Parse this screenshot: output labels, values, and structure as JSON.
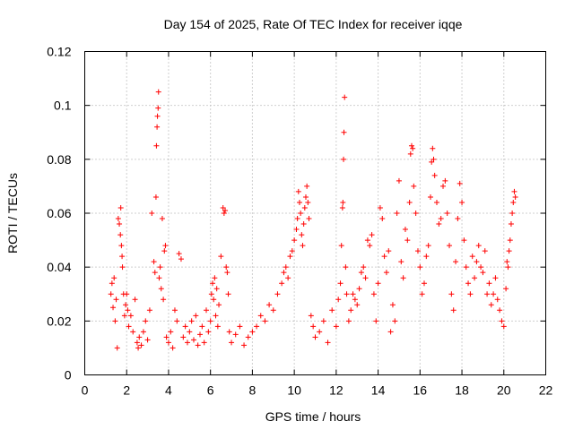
{
  "chart_data": {
    "type": "scatter",
    "title": "Day 154 of 2025, Rate Of TEC Index for receiver iqqe",
    "xlabel": "GPS time / hours",
    "ylabel": "ROTI / TECUs",
    "xlim": [
      0,
      22
    ],
    "ylim": [
      0,
      0.12
    ],
    "xticks": [
      0,
      2,
      4,
      6,
      8,
      10,
      12,
      14,
      16,
      18,
      20,
      22
    ],
    "yticks": [
      0,
      0.02,
      0.04,
      0.06,
      0.08,
      0.1,
      0.12
    ],
    "xtick_labels": [
      "0",
      "2",
      "4",
      "6",
      "8",
      "10",
      "12",
      "14",
      "16",
      "18",
      "20",
      "22"
    ],
    "ytick_labels": [
      "0",
      "0.02",
      "0.04",
      "0.06",
      "0.08",
      "0.1",
      "0.12"
    ],
    "grid": true,
    "marker": "+",
    "color": "#ff0000",
    "series": [
      {
        "name": "ROTI",
        "points": [
          [
            1.25,
            0.03
          ],
          [
            1.3,
            0.034
          ],
          [
            1.35,
            0.025
          ],
          [
            1.4,
            0.036
          ],
          [
            1.45,
            0.02
          ],
          [
            1.5,
            0.028
          ],
          [
            1.55,
            0.01
          ],
          [
            1.6,
            0.058
          ],
          [
            1.65,
            0.056
          ],
          [
            1.7,
            0.052
          ],
          [
            1.72,
            0.062
          ],
          [
            1.75,
            0.048
          ],
          [
            1.78,
            0.044
          ],
          [
            1.8,
            0.04
          ],
          [
            1.85,
            0.03
          ],
          [
            1.9,
            0.022
          ],
          [
            1.95,
            0.026
          ],
          [
            2.0,
            0.03
          ],
          [
            2.05,
            0.024
          ],
          [
            2.1,
            0.018
          ],
          [
            2.2,
            0.022
          ],
          [
            2.3,
            0.016
          ],
          [
            2.4,
            0.028
          ],
          [
            2.5,
            0.012
          ],
          [
            2.55,
            0.01
          ],
          [
            2.6,
            0.014
          ],
          [
            2.7,
            0.011
          ],
          [
            2.8,
            0.016
          ],
          [
            2.9,
            0.02
          ],
          [
            3.0,
            0.013
          ],
          [
            3.1,
            0.024
          ],
          [
            3.2,
            0.06
          ],
          [
            3.3,
            0.042
          ],
          [
            3.35,
            0.038
          ],
          [
            3.4,
            0.066
          ],
          [
            3.42,
            0.085
          ],
          [
            3.45,
            0.092
          ],
          [
            3.47,
            0.096
          ],
          [
            3.5,
            0.099
          ],
          [
            3.52,
            0.105
          ],
          [
            3.55,
            0.036
          ],
          [
            3.6,
            0.04
          ],
          [
            3.65,
            0.032
          ],
          [
            3.7,
            0.058
          ],
          [
            3.75,
            0.028
          ],
          [
            3.8,
            0.046
          ],
          [
            3.85,
            0.048
          ],
          [
            3.9,
            0.014
          ],
          [
            4.0,
            0.012
          ],
          [
            4.1,
            0.016
          ],
          [
            4.2,
            0.01
          ],
          [
            4.3,
            0.024
          ],
          [
            4.4,
            0.02
          ],
          [
            4.5,
            0.045
          ],
          [
            4.6,
            0.043
          ],
          [
            4.7,
            0.014
          ],
          [
            4.8,
            0.018
          ],
          [
            4.9,
            0.012
          ],
          [
            5.0,
            0.016
          ],
          [
            5.1,
            0.02
          ],
          [
            5.2,
            0.013
          ],
          [
            5.3,
            0.022
          ],
          [
            5.4,
            0.011
          ],
          [
            5.5,
            0.015
          ],
          [
            5.6,
            0.018
          ],
          [
            5.7,
            0.012
          ],
          [
            5.8,
            0.024
          ],
          [
            5.9,
            0.016
          ],
          [
            6.0,
            0.02
          ],
          [
            6.05,
            0.03
          ],
          [
            6.1,
            0.034
          ],
          [
            6.15,
            0.028
          ],
          [
            6.2,
            0.036
          ],
          [
            6.25,
            0.022
          ],
          [
            6.3,
            0.032
          ],
          [
            6.35,
            0.018
          ],
          [
            6.4,
            0.026
          ],
          [
            6.5,
            0.044
          ],
          [
            6.6,
            0.062
          ],
          [
            6.65,
            0.06
          ],
          [
            6.7,
            0.061
          ],
          [
            6.75,
            0.04
          ],
          [
            6.8,
            0.038
          ],
          [
            6.85,
            0.03
          ],
          [
            6.9,
            0.016
          ],
          [
            7.0,
            0.012
          ],
          [
            7.2,
            0.015
          ],
          [
            7.4,
            0.018
          ],
          [
            7.6,
            0.011
          ],
          [
            7.8,
            0.014
          ],
          [
            8.0,
            0.016
          ],
          [
            8.2,
            0.018
          ],
          [
            8.4,
            0.022
          ],
          [
            8.6,
            0.02
          ],
          [
            8.8,
            0.026
          ],
          [
            9.0,
            0.024
          ],
          [
            9.2,
            0.03
          ],
          [
            9.4,
            0.034
          ],
          [
            9.5,
            0.038
          ],
          [
            9.6,
            0.04
          ],
          [
            9.7,
            0.036
          ],
          [
            9.8,
            0.044
          ],
          [
            9.9,
            0.046
          ],
          [
            10.0,
            0.05
          ],
          [
            10.1,
            0.054
          ],
          [
            10.15,
            0.058
          ],
          [
            10.2,
            0.068
          ],
          [
            10.25,
            0.064
          ],
          [
            10.3,
            0.06
          ],
          [
            10.35,
            0.052
          ],
          [
            10.4,
            0.048
          ],
          [
            10.45,
            0.056
          ],
          [
            10.5,
            0.062
          ],
          [
            10.55,
            0.066
          ],
          [
            10.6,
            0.07
          ],
          [
            10.65,
            0.064
          ],
          [
            10.7,
            0.058
          ],
          [
            10.8,
            0.022
          ],
          [
            10.9,
            0.018
          ],
          [
            11.0,
            0.014
          ],
          [
            11.2,
            0.016
          ],
          [
            11.4,
            0.02
          ],
          [
            11.6,
            0.012
          ],
          [
            11.8,
            0.024
          ],
          [
            12.0,
            0.018
          ],
          [
            12.1,
            0.028
          ],
          [
            12.2,
            0.034
          ],
          [
            12.25,
            0.048
          ],
          [
            12.3,
            0.062
          ],
          [
            12.32,
            0.064
          ],
          [
            12.35,
            0.08
          ],
          [
            12.37,
            0.09
          ],
          [
            12.4,
            0.103
          ],
          [
            12.45,
            0.04
          ],
          [
            12.5,
            0.03
          ],
          [
            12.6,
            0.02
          ],
          [
            12.7,
            0.024
          ],
          [
            12.8,
            0.03
          ],
          [
            12.9,
            0.028
          ],
          [
            13.0,
            0.026
          ],
          [
            13.1,
            0.032
          ],
          [
            13.2,
            0.038
          ],
          [
            13.3,
            0.04
          ],
          [
            13.4,
            0.036
          ],
          [
            13.5,
            0.05
          ],
          [
            13.6,
            0.048
          ],
          [
            13.7,
            0.052
          ],
          [
            13.8,
            0.03
          ],
          [
            13.9,
            0.02
          ],
          [
            14.0,
            0.034
          ],
          [
            14.1,
            0.062
          ],
          [
            14.2,
            0.058
          ],
          [
            14.3,
            0.044
          ],
          [
            14.4,
            0.038
          ],
          [
            14.5,
            0.046
          ],
          [
            14.6,
            0.016
          ],
          [
            14.7,
            0.026
          ],
          [
            14.8,
            0.02
          ],
          [
            14.9,
            0.06
          ],
          [
            15.0,
            0.072
          ],
          [
            15.1,
            0.042
          ],
          [
            15.2,
            0.036
          ],
          [
            15.3,
            0.054
          ],
          [
            15.4,
            0.05
          ],
          [
            15.5,
            0.064
          ],
          [
            15.55,
            0.082
          ],
          [
            15.6,
            0.085
          ],
          [
            15.65,
            0.084
          ],
          [
            15.7,
            0.07
          ],
          [
            15.8,
            0.06
          ],
          [
            15.9,
            0.046
          ],
          [
            16.0,
            0.04
          ],
          [
            16.1,
            0.03
          ],
          [
            16.2,
            0.034
          ],
          [
            16.3,
            0.044
          ],
          [
            16.4,
            0.048
          ],
          [
            16.5,
            0.066
          ],
          [
            16.55,
            0.079
          ],
          [
            16.6,
            0.084
          ],
          [
            16.65,
            0.08
          ],
          [
            16.7,
            0.074
          ],
          [
            16.8,
            0.064
          ],
          [
            16.9,
            0.056
          ],
          [
            17.0,
            0.058
          ],
          [
            17.1,
            0.07
          ],
          [
            17.2,
            0.072
          ],
          [
            17.3,
            0.06
          ],
          [
            17.4,
            0.048
          ],
          [
            17.5,
            0.03
          ],
          [
            17.6,
            0.024
          ],
          [
            17.7,
            0.042
          ],
          [
            17.8,
            0.058
          ],
          [
            17.9,
            0.071
          ],
          [
            18.0,
            0.064
          ],
          [
            18.1,
            0.05
          ],
          [
            18.2,
            0.04
          ],
          [
            18.3,
            0.034
          ],
          [
            18.4,
            0.03
          ],
          [
            18.5,
            0.044
          ],
          [
            18.6,
            0.036
          ],
          [
            18.7,
            0.042
          ],
          [
            18.8,
            0.048
          ],
          [
            18.9,
            0.04
          ],
          [
            19.0,
            0.038
          ],
          [
            19.1,
            0.046
          ],
          [
            19.2,
            0.03
          ],
          [
            19.3,
            0.034
          ],
          [
            19.4,
            0.026
          ],
          [
            19.5,
            0.03
          ],
          [
            19.6,
            0.036
          ],
          [
            19.7,
            0.028
          ],
          [
            19.8,
            0.024
          ],
          [
            19.9,
            0.02
          ],
          [
            20.0,
            0.018
          ],
          [
            20.1,
            0.032
          ],
          [
            20.15,
            0.042
          ],
          [
            20.2,
            0.04
          ],
          [
            20.25,
            0.046
          ],
          [
            20.3,
            0.05
          ],
          [
            20.35,
            0.056
          ],
          [
            20.4,
            0.06
          ],
          [
            20.45,
            0.064
          ],
          [
            20.5,
            0.068
          ],
          [
            20.55,
            0.066
          ]
        ]
      }
    ]
  }
}
